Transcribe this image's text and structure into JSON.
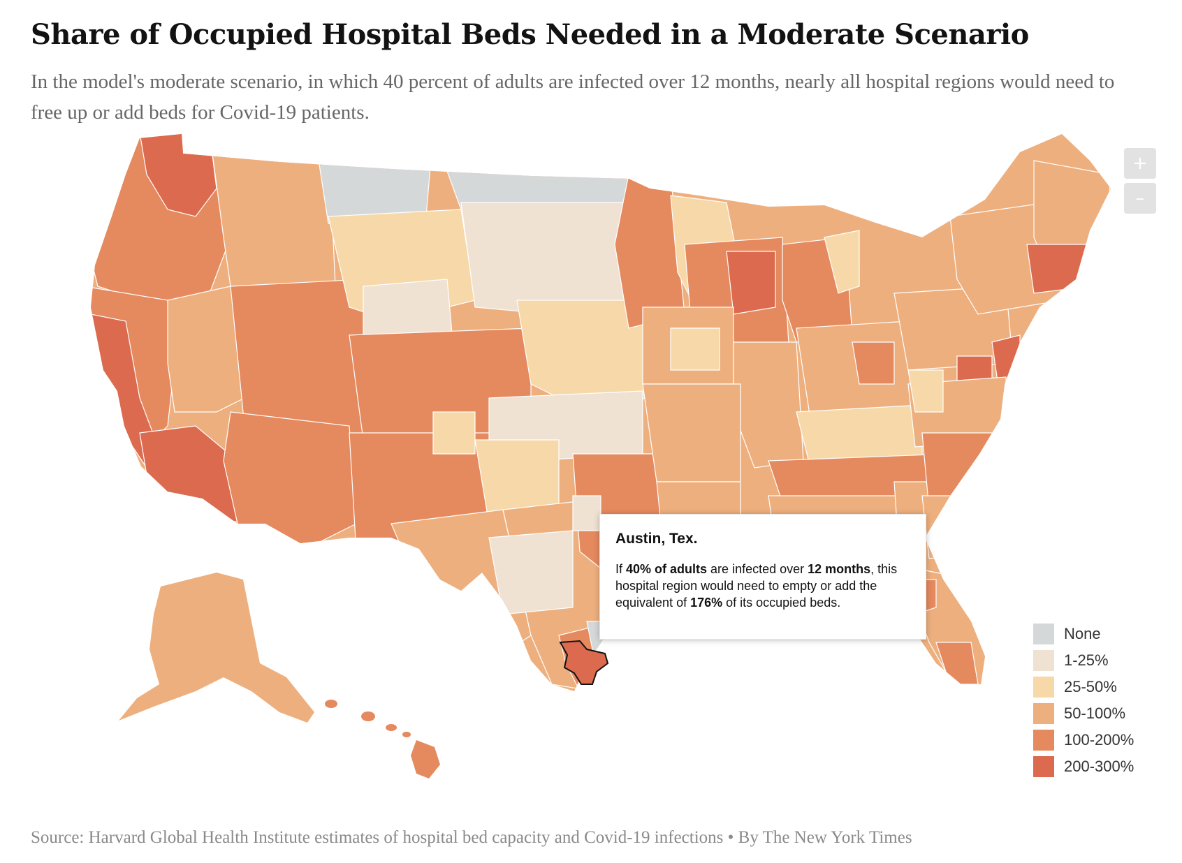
{
  "header": {
    "title": "Share of Occupied Hospital Beds Needed in a Moderate Scenario",
    "subtitle": "In the model's moderate scenario, in which 40 percent of adults are infected over 12 months, nearly all hospital regions would need to free up or add beds for Covid-19 patients."
  },
  "controls": {
    "zoom_in": "+",
    "zoom_out": "–"
  },
  "tooltip": {
    "region": "Austin, Tex.",
    "text_1": "If ",
    "bold_1": "40% of adults",
    "text_2": " are infected over ",
    "bold_2": "12 months",
    "text_3": ", this hospital region would need to empty or add the equivalent of ",
    "bold_3": "176%",
    "text_4": " of its occupied beds."
  },
  "legend": {
    "items": [
      {
        "label": "None",
        "color": "#d5d8d8"
      },
      {
        "label": "1-25%",
        "color": "#efe2d2"
      },
      {
        "label": "25-50%",
        "color": "#f7d8a8"
      },
      {
        "label": "50-100%",
        "color": "#eeaf7e"
      },
      {
        "label": "100-200%",
        "color": "#e5895f"
      },
      {
        "label": "200-300%",
        "color": "#dc6a4f"
      }
    ]
  },
  "map": {
    "highlighted_region": "Austin, Tex.",
    "highlighted_value_pct": 176
  },
  "footer": {
    "source": "Source:  Harvard Global Health Institute estimates of hospital bed capacity and Covid-19 infections • By The New York Times"
  }
}
